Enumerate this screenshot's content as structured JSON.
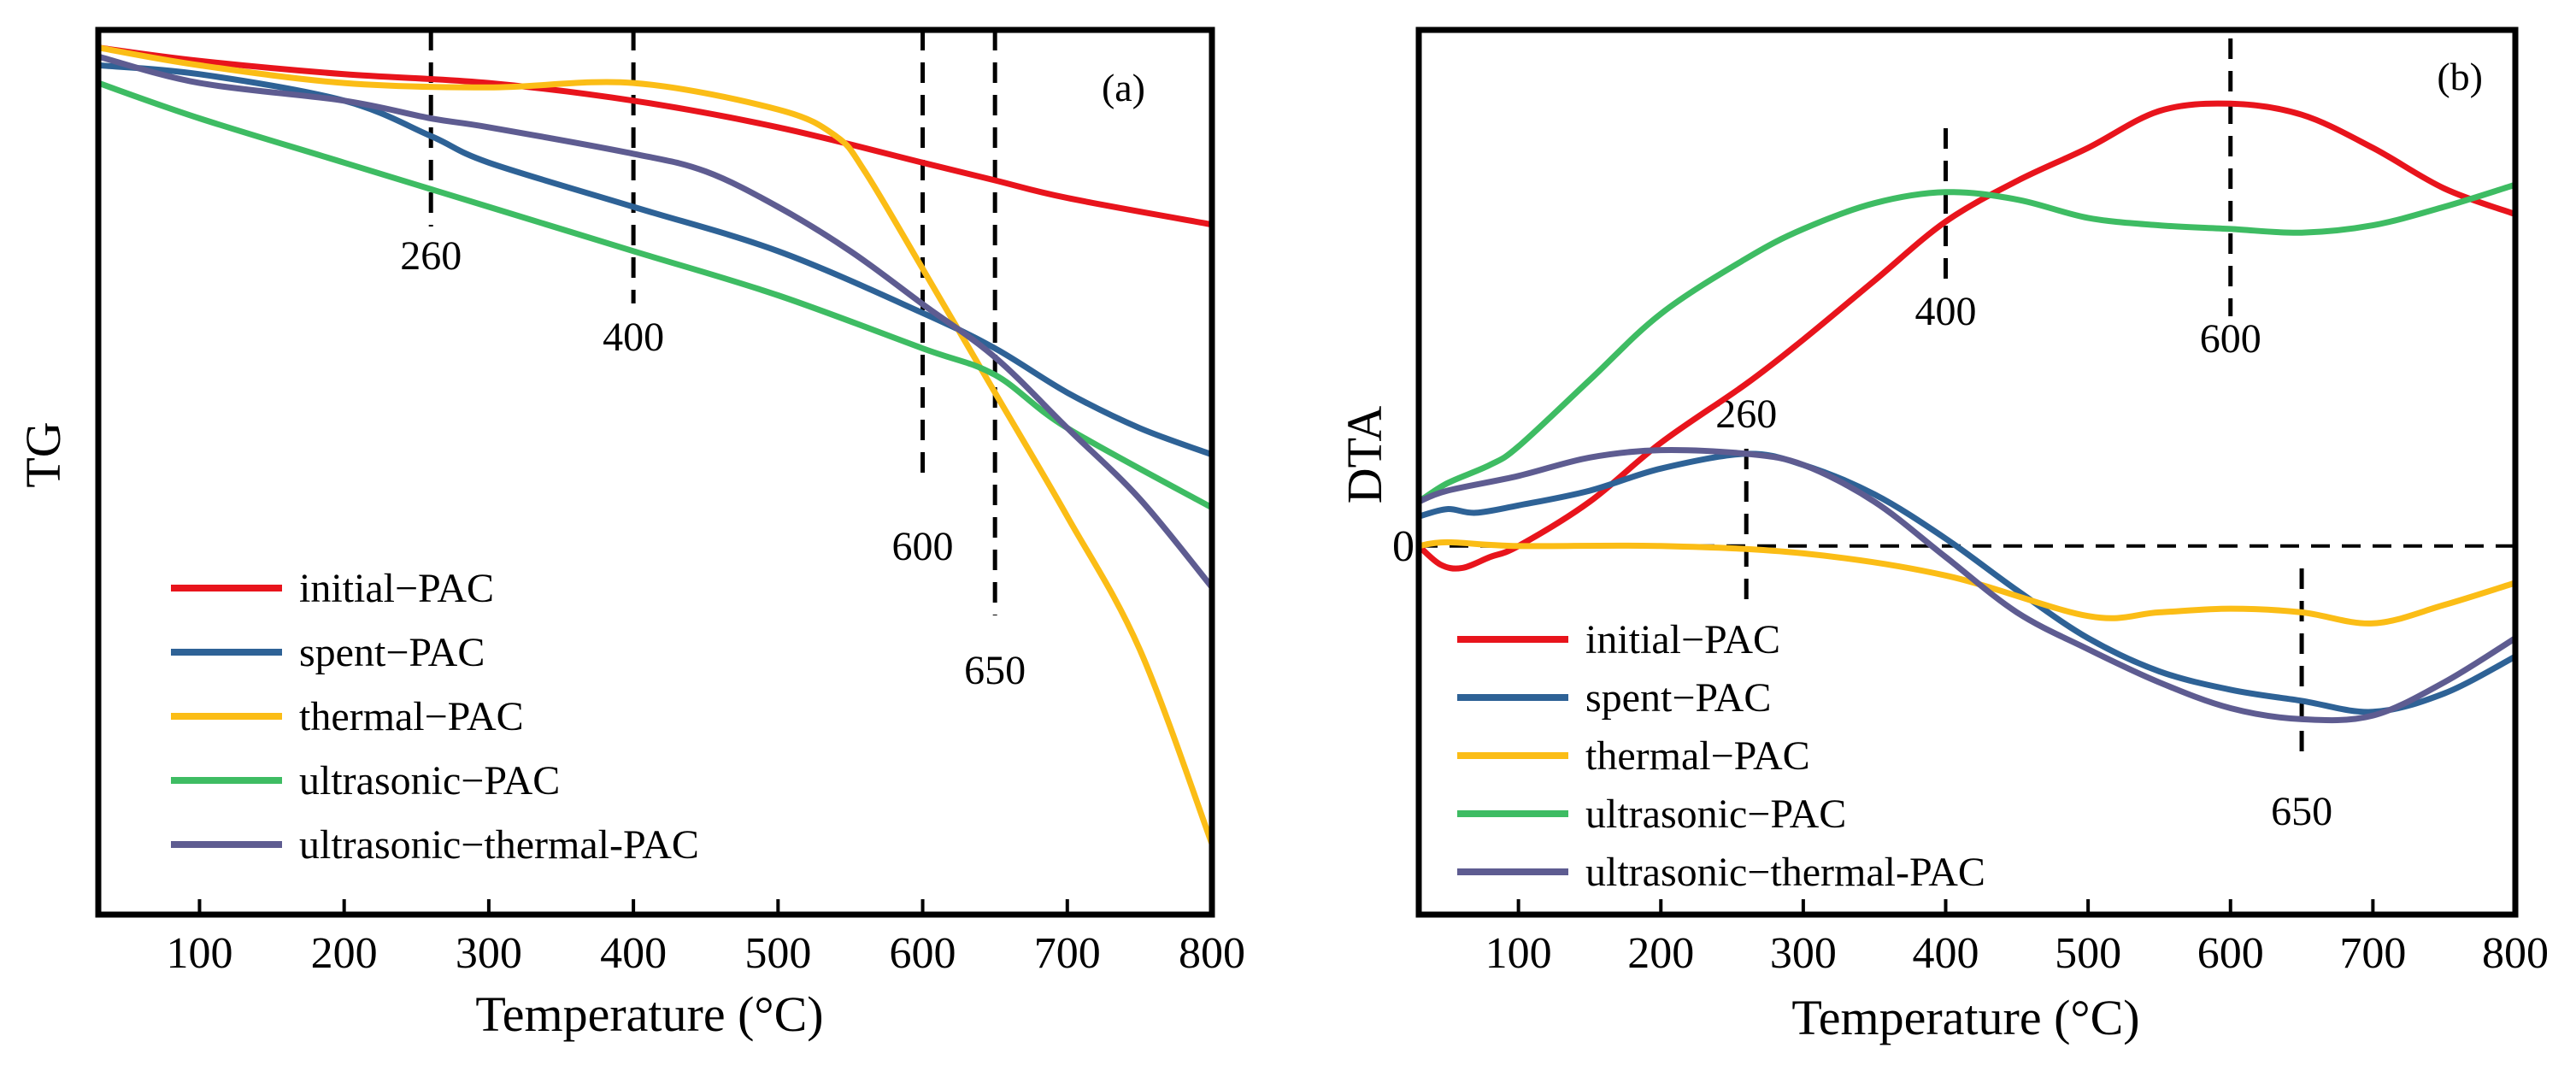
{
  "chart_data": [
    {
      "id": "a",
      "type": "line",
      "panel_label": "(a)",
      "title": "",
      "xlabel": "Temperature (°C)",
      "ylabel": "TG",
      "xlim": [
        30,
        800
      ],
      "ylim": [
        0,
        100
      ],
      "xticks": [
        100,
        200,
        300,
        400,
        500,
        600,
        700,
        800
      ],
      "legend_position": "bottom-left",
      "reference_lines": [
        {
          "x": 260,
          "label": "260"
        },
        {
          "x": 400,
          "label": "400"
        },
        {
          "x": 600,
          "label": "600"
        },
        {
          "x": 650,
          "label": "650"
        }
      ],
      "series": [
        {
          "name": "initial−PAC",
          "color": "#e8141c",
          "x": [
            30,
            100,
            200,
            300,
            400,
            500,
            600,
            650,
            700,
            800
          ],
          "y": [
            98,
            96.5,
            95,
            94,
            92,
            89,
            85,
            83,
            81,
            78
          ]
        },
        {
          "name": "spent−PAC",
          "color": "#2e6296",
          "x": [
            30,
            100,
            200,
            260,
            300,
            400,
            500,
            600,
            650,
            700,
            750,
            800
          ],
          "y": [
            96,
            95,
            92,
            88,
            85,
            80,
            75,
            68,
            64,
            59,
            55,
            52
          ]
        },
        {
          "name": "thermal−PAC",
          "color": "#fbbd16",
          "x": [
            30,
            100,
            200,
            300,
            400,
            500,
            540,
            560,
            600,
            650,
            700,
            750,
            800
          ],
          "y": [
            98,
            96,
            94,
            93.5,
            94,
            91,
            88,
            84,
            73,
            59,
            45,
            30,
            8
          ]
        },
        {
          "name": "ultrasonic−PAC",
          "color": "#3ebc63",
          "x": [
            30,
            100,
            200,
            300,
            400,
            500,
            600,
            650,
            700,
            800
          ],
          "y": [
            94,
            90,
            85,
            80,
            75,
            70,
            64,
            61,
            55,
            46
          ]
        },
        {
          "name": "ultrasonic−thermal-PAC",
          "color": "#5e5c91",
          "x": [
            30,
            100,
            200,
            260,
            300,
            400,
            450,
            500,
            550,
            600,
            650,
            700,
            750,
            800
          ],
          "y": [
            97,
            94,
            92,
            90,
            89,
            86,
            84,
            80,
            75,
            69,
            63,
            55,
            47,
            37
          ]
        }
      ]
    },
    {
      "id": "b",
      "type": "line",
      "panel_label": "(b)",
      "title": "",
      "xlabel": "Temperature (°C)",
      "ylabel": "DTA",
      "zero_label": "0",
      "xlim": [
        30,
        800
      ],
      "ylim": [
        -100,
        140
      ],
      "xticks": [
        100,
        200,
        300,
        400,
        500,
        600,
        700,
        800
      ],
      "legend_position": "bottom-left",
      "zero_line": true,
      "reference_lines": [
        {
          "x": 260,
          "label": "260"
        },
        {
          "x": 400,
          "label": "400"
        },
        {
          "x": 600,
          "label": "600"
        },
        {
          "x": 650,
          "label": "650"
        }
      ],
      "series": [
        {
          "name": "initial−PAC",
          "color": "#e8141c",
          "x": [
            30,
            45,
            60,
            80,
            100,
            150,
            200,
            260,
            300,
            350,
            400,
            450,
            500,
            550,
            600,
            650,
            700,
            750,
            800
          ],
          "y": [
            0,
            -5,
            -6,
            -3,
            0,
            12,
            28,
            44,
            56,
            72,
            88,
            99,
            108,
            118,
            120,
            117,
            108,
            97,
            90
          ]
        },
        {
          "name": "spent−PAC",
          "color": "#2e6296",
          "x": [
            30,
            50,
            70,
            100,
            150,
            200,
            260,
            300,
            350,
            400,
            450,
            500,
            550,
            600,
            650,
            700,
            750,
            800
          ],
          "y": [
            8,
            10,
            9,
            11,
            15,
            21,
            25,
            22,
            14,
            2,
            -12,
            -25,
            -34,
            -39,
            -42,
            -45,
            -40,
            -30
          ]
        },
        {
          "name": "thermal−PAC",
          "color": "#fbbd16",
          "x": [
            30,
            50,
            100,
            200,
            300,
            400,
            500,
            550,
            600,
            650,
            700,
            750,
            800
          ],
          "y": [
            0,
            1,
            0,
            0,
            -2,
            -8,
            -19,
            -18,
            -17,
            -18,
            -21,
            -16,
            -10
          ]
        },
        {
          "name": "ultrasonic−PAC",
          "color": "#3ebc63",
          "x": [
            30,
            50,
            80,
            100,
            150,
            200,
            260,
            300,
            350,
            400,
            450,
            500,
            550,
            600,
            650,
            700,
            750,
            800
          ],
          "y": [
            12,
            17,
            22,
            27,
            45,
            63,
            78,
            86,
            93,
            96,
            94,
            89,
            87,
            86,
            85,
            87,
            92,
            98
          ]
        },
        {
          "name": "ultrasonic−thermal-PAC",
          "color": "#5e5c91",
          "x": [
            30,
            50,
            100,
            150,
            200,
            260,
            300,
            350,
            400,
            450,
            500,
            550,
            600,
            650,
            700,
            750,
            800
          ],
          "y": [
            12,
            15,
            19,
            24,
            26,
            25,
            22,
            12,
            -3,
            -18,
            -28,
            -37,
            -44,
            -47,
            -46,
            -37,
            -25
          ]
        }
      ]
    }
  ]
}
